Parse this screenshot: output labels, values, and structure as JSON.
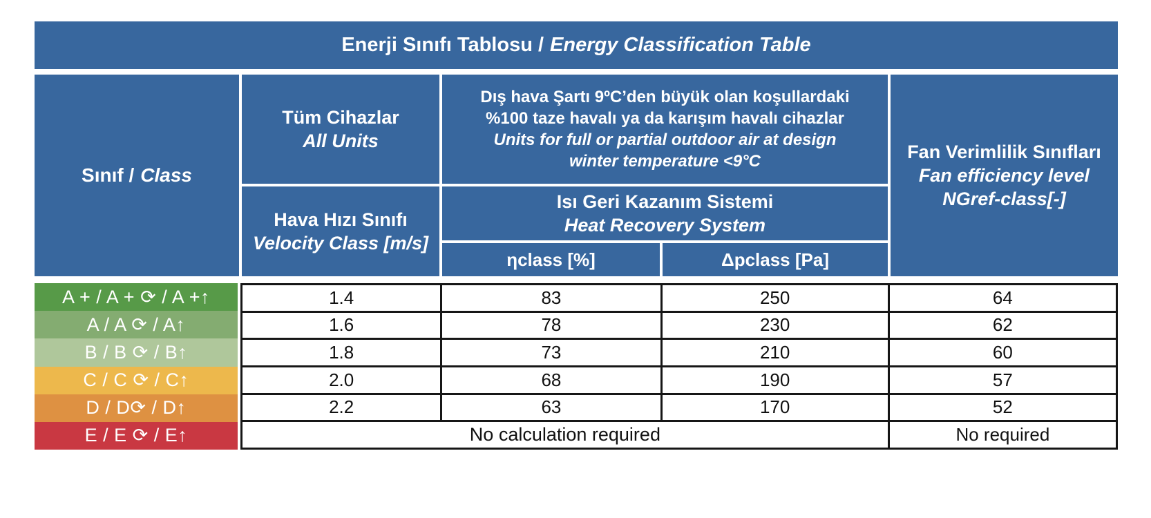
{
  "title": {
    "tr": "Enerji Sınıfı Tablosu /",
    "en": "Energy Classification Table"
  },
  "colors": {
    "header_blue": "#38679E",
    "grid_border": "#161616",
    "row_a_plus_green": "#579A48",
    "row_a_green": "#84AC71",
    "row_b_green": "#AFC79B",
    "row_c_amber": "#EDB84C",
    "row_d_orange": "#DE9142",
    "row_e_red": "#C93842"
  },
  "header": {
    "class_col": {
      "tr": "Sınıf /",
      "en": "Class"
    },
    "all_units": {
      "tr": "Tüm Cihazlar",
      "en": "All Units"
    },
    "velocity": {
      "tr": "Hava Hızı Sınıfı",
      "en": "Velocity Class [m/s]"
    },
    "outdoor": {
      "tr_line1": "Dış hava Şartı 9ºC’den büyük olan koşullardaki",
      "tr_line2": "%100 taze havalı ya da karışım havalı cihazlar",
      "en_line1": "Units for full or partial outdoor air at design",
      "en_line2": "winter temperature <9°C"
    },
    "heat_recovery": {
      "tr": "Isı Geri Kazanım Sistemi",
      "en": "Heat Recovery System"
    },
    "eta": "ηclass [%]",
    "dp": "Δpclass [Pa]",
    "fan": {
      "tr": "Fan Verimlilik Sınıfları",
      "en_line1": "Fan efficiency level",
      "en_line2": "NGref-class[-]"
    }
  },
  "rows": [
    {
      "label": "A + / A + ⟳ / A +↑",
      "color": "#579A48",
      "velocity": "1.4",
      "eta": "83",
      "dp": "250",
      "fan": "64"
    },
    {
      "label": "A / A ⟳ / A↑",
      "color": "#84AC71",
      "velocity": "1.6",
      "eta": "78",
      "dp": "230",
      "fan": "62"
    },
    {
      "label": "B / B ⟳ / B↑",
      "color": "#AFC79B",
      "velocity": "1.8",
      "eta": "73",
      "dp": "210",
      "fan": "60"
    },
    {
      "label": "C / C ⟳ / C↑",
      "color": "#EDB84C",
      "velocity": "2.0",
      "eta": "68",
      "dp": "190",
      "fan": "57"
    },
    {
      "label": "D / D⟳ / D↑",
      "color": "#DE9142",
      "velocity": "2.2",
      "eta": "63",
      "dp": "170",
      "fan": "52"
    },
    {
      "label": "E / E ⟳ / E↑",
      "color": "#C93842",
      "merged": "No calculation required",
      "fan": "No required"
    }
  ]
}
